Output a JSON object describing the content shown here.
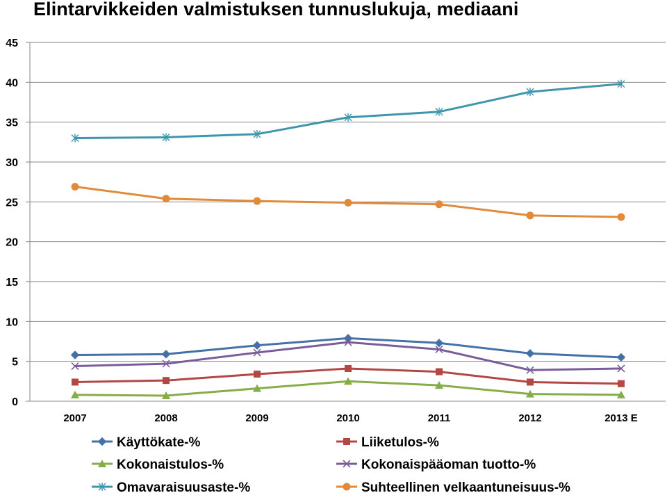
{
  "chart_data": {
    "type": "line",
    "title": "Elintarvikkeiden valmistuksen tunnuslukuja, mediaani",
    "categories": [
      "2007",
      "2008",
      "2009",
      "2010",
      "2011",
      "2012",
      "2013 E"
    ],
    "ylim": [
      0,
      45
    ],
    "yticks": [
      0,
      5,
      10,
      15,
      20,
      25,
      30,
      35,
      40,
      45
    ],
    "grid": true,
    "legend_position": "bottom",
    "series": [
      {
        "name": "Käyttökate-%",
        "color": "#4472A8",
        "marker": "diamond",
        "values": [
          5.8,
          5.9,
          7.0,
          7.9,
          7.3,
          6.0,
          5.5
        ]
      },
      {
        "name": "Liiketulos-%",
        "color": "#B24744",
        "marker": "square",
        "values": [
          2.4,
          2.6,
          3.4,
          4.1,
          3.7,
          2.4,
          2.2
        ]
      },
      {
        "name": "Kokonaistulos-%",
        "color": "#87AC4A",
        "marker": "triangle",
        "values": [
          0.8,
          0.7,
          1.6,
          2.5,
          2.0,
          0.9,
          0.8
        ]
      },
      {
        "name": "Kokonaispääoman tuotto-%",
        "color": "#7A5C9A",
        "marker": "x",
        "values": [
          4.4,
          4.7,
          6.1,
          7.4,
          6.5,
          3.9,
          4.1
        ]
      },
      {
        "name": "Omavaraisuusaste-%",
        "color": "#3E96AC",
        "marker": "star",
        "values": [
          33.0,
          33.1,
          33.5,
          35.6,
          36.3,
          38.8,
          39.8
        ]
      },
      {
        "name": "Suhteellinen velkaantuneisuus-%",
        "color": "#E08A3A",
        "marker": "circle",
        "values": [
          26.9,
          25.4,
          25.1,
          24.9,
          24.7,
          23.3,
          23.1
        ]
      }
    ]
  }
}
